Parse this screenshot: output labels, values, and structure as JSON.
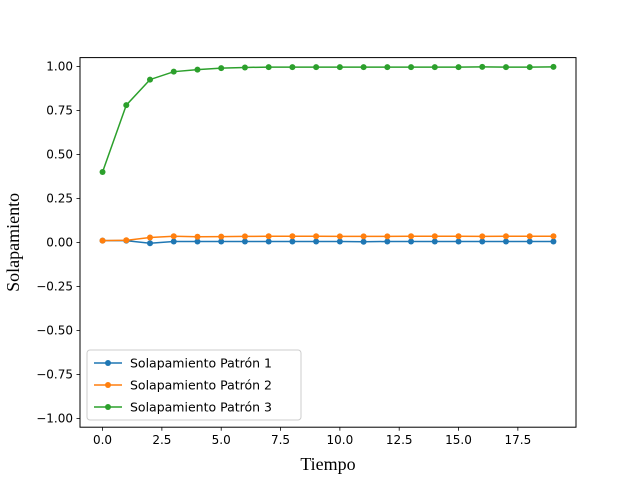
{
  "chart_data": {
    "type": "line",
    "title": "",
    "xlabel": "Tiempo",
    "ylabel": "Solapamiento",
    "xlim": [
      -0.95,
      19.95
    ],
    "ylim": [
      -1.05,
      1.05
    ],
    "xticks": [
      0.0,
      2.5,
      5.0,
      7.5,
      10.0,
      12.5,
      15.0,
      17.5
    ],
    "xtick_labels": [
      "0.0",
      "2.5",
      "5.0",
      "7.5",
      "10.0",
      "12.5",
      "15.0",
      "17.5"
    ],
    "yticks": [
      1.0,
      0.75,
      0.5,
      0.25,
      0.0,
      -0.25,
      -0.5,
      -0.75,
      -1.0
    ],
    "ytick_labels": [
      "1.00",
      "0.75",
      "0.50",
      "0.25",
      "0.00",
      "−0.25",
      "−0.50",
      "−0.75",
      "−1.00"
    ],
    "grid": false,
    "legend_position": "lower-left",
    "x": [
      0,
      1,
      2,
      3,
      4,
      5,
      6,
      7,
      8,
      9,
      10,
      11,
      12,
      13,
      14,
      15,
      16,
      17,
      18,
      19
    ],
    "series": [
      {
        "name": "Solapamiento Patrón 1",
        "color": "#1f77b4",
        "values": [
          0.01,
          0.01,
          -0.005,
          0.005,
          0.005,
          0.005,
          0.005,
          0.005,
          0.005,
          0.005,
          0.005,
          0.004,
          0.005,
          0.005,
          0.005,
          0.005,
          0.005,
          0.005,
          0.005,
          0.005
        ]
      },
      {
        "name": "Solapamiento Patrón 2",
        "color": "#ff7f0e",
        "values": [
          0.01,
          0.012,
          0.028,
          0.035,
          0.032,
          0.033,
          0.034,
          0.035,
          0.035,
          0.035,
          0.034,
          0.034,
          0.034,
          0.035,
          0.035,
          0.035,
          0.034,
          0.035,
          0.035,
          0.035
        ]
      },
      {
        "name": "Solapamiento Patrón 3",
        "color": "#2ca02c",
        "values": [
          0.4,
          0.78,
          0.925,
          0.97,
          0.982,
          0.99,
          0.994,
          0.996,
          0.996,
          0.996,
          0.996,
          0.996,
          0.996,
          0.996,
          0.996,
          0.996,
          0.997,
          0.996,
          0.996,
          0.997
        ]
      }
    ]
  }
}
